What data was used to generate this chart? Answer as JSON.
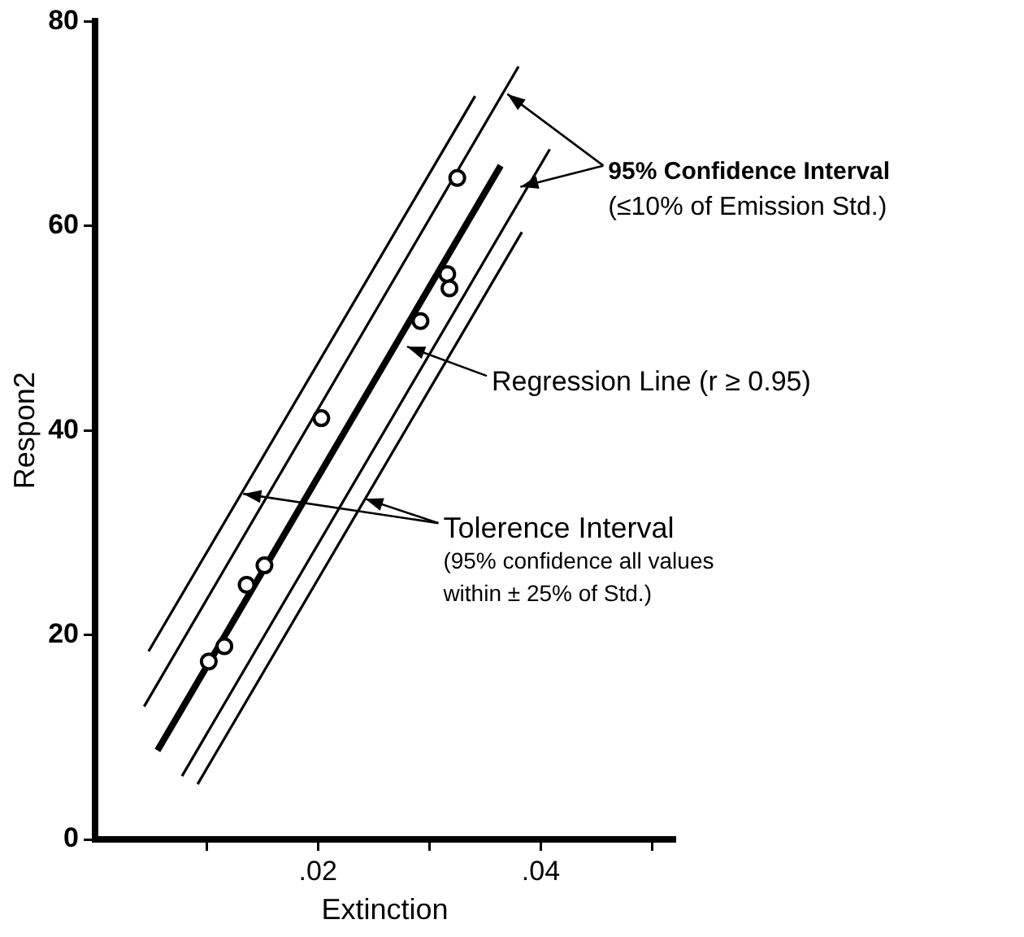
{
  "chart_data": {
    "type": "scatter",
    "xlabel": "Extinction",
    "ylabel": "Respon2",
    "xlim": [
      0,
      0.052
    ],
    "ylim": [
      0,
      80
    ],
    "xticks": [
      {
        "value": 0.01,
        "label": null
      },
      {
        "value": 0.02,
        "label": ".02"
      },
      {
        "value": 0.03,
        "label": null
      },
      {
        "value": 0.04,
        "label": ".04"
      },
      {
        "value": 0.05,
        "label": null
      }
    ],
    "yticks": [
      0,
      20,
      40,
      60,
      80
    ],
    "grid": false,
    "series": [
      {
        "type": "scatter",
        "marker": "circle",
        "color": "#000000",
        "x": [
          0.0325,
          0.0316,
          0.0318,
          0.0292,
          0.0203,
          0.0152,
          0.0136,
          0.0116,
          0.0102
        ],
        "values": [
          64.7,
          55.3,
          53.9,
          50.7,
          41.2,
          26.8,
          24.9,
          18.9,
          17.4
        ]
      },
      {
        "type": "line",
        "color": "#000000",
        "x": [
          0.0056,
          0.0364
        ],
        "values": [
          8.7,
          65.9
        ]
      },
      {
        "type": "line",
        "color": "#000000",
        "x": [
          0.0048,
          0.0341
        ],
        "values": [
          18.4,
          72.7
        ]
      },
      {
        "type": "line",
        "color": "#000000",
        "x": [
          0.0044,
          0.038
        ],
        "values": [
          13.0,
          75.6
        ]
      },
      {
        "type": "line",
        "color": "#000000",
        "x": [
          0.0078,
          0.0408
        ],
        "values": [
          6.2,
          67.5
        ]
      },
      {
        "type": "line",
        "color": "#000000",
        "x": [
          0.0092,
          0.0383
        ],
        "values": [
          5.4,
          59.4
        ]
      }
    ],
    "annotations": [
      {
        "text": "95% Confidence Interval\n(≤10% of Emission Std.)",
        "x": 0.037,
        "y": 72.9
      },
      {
        "text": "Regression Line (r ≥ 0.95)",
        "x": 0.028,
        "y": 48.2
      },
      {
        "text": "Tolerence Interval\n(95% confidence all values\nwithin ± 25% of Std.)",
        "x": 0.0133,
        "y": 33.8
      }
    ]
  }
}
